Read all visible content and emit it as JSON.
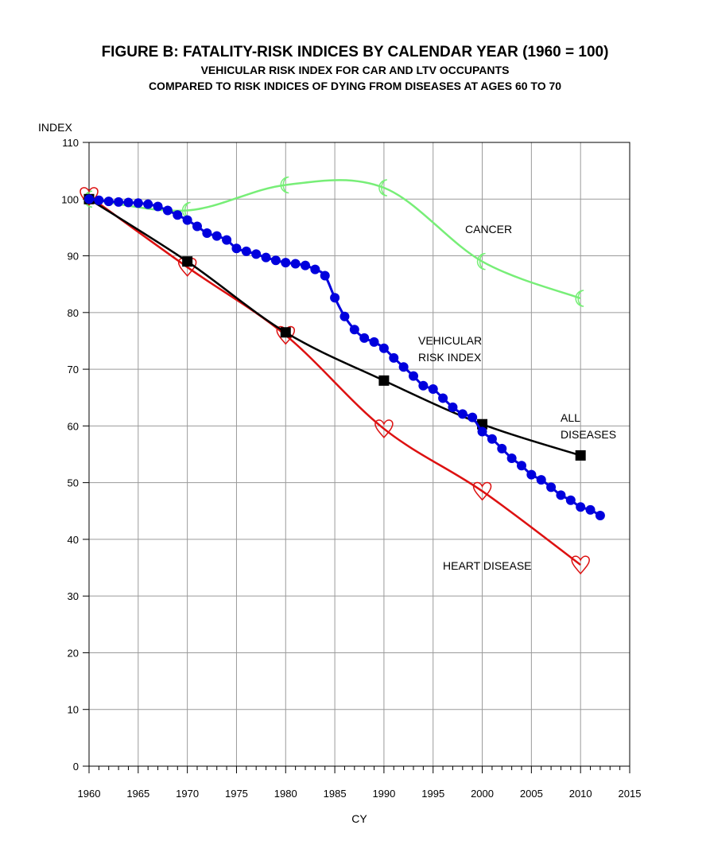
{
  "chart_data": {
    "type": "line",
    "title": "FIGURE B: FATALITY-RISK INDICES BY CALENDAR YEAR (1960 = 100)",
    "subtitle": [
      "VEHICULAR RISK INDEX FOR CAR AND LTV OCCUPANTS",
      "COMPARED TO RISK INDICES OF DYING FROM DISEASES AT AGES 60 TO 70"
    ],
    "ylabel": "INDEX",
    "xlabel": "CY",
    "xlim": [
      1960,
      2015
    ],
    "ylim": [
      0,
      110
    ],
    "xticks": [
      "1960",
      "1965",
      "1970",
      "1975",
      "1980",
      "1985",
      "1990",
      "1995",
      "2000",
      "2005",
      "2010",
      "2015"
    ],
    "yticks": [
      "0",
      "10",
      "20",
      "30",
      "40",
      "50",
      "60",
      "70",
      "80",
      "90",
      "100",
      "110"
    ],
    "grid": true,
    "series": [
      {
        "name": "VEHICULAR RISK INDEX",
        "color": "#0000dd",
        "marker": "circle",
        "x": [
          1960,
          1961,
          1962,
          1963,
          1964,
          1965,
          1966,
          1967,
          1968,
          1969,
          1970,
          1971,
          1972,
          1973,
          1974,
          1975,
          1976,
          1977,
          1978,
          1979,
          1980,
          1981,
          1982,
          1983,
          1984,
          1985,
          1986,
          1987,
          1988,
          1989,
          1990,
          1991,
          1992,
          1993,
          1994,
          1995,
          1996,
          1997,
          1998,
          1999,
          2000,
          2001,
          2002,
          2003,
          2004,
          2005,
          2006,
          2007,
          2008,
          2009,
          2010,
          2011,
          2012
        ],
        "y": [
          100,
          99.8,
          99.6,
          99.5,
          99.4,
          99.3,
          99.1,
          98.7,
          98.0,
          97.2,
          96.3,
          95.2,
          94.0,
          93.5,
          92.8,
          91.3,
          90.8,
          90.3,
          89.7,
          89.2,
          88.8,
          88.6,
          88.3,
          87.6,
          86.5,
          82.6,
          79.3,
          77.0,
          75.5,
          74.8,
          73.7,
          72.0,
          70.4,
          68.8,
          67.1,
          66.5,
          64.9,
          63.3,
          62.1,
          61.5,
          59.0,
          57.7,
          56.0,
          54.3,
          53.0,
          51.4,
          50.5,
          49.2,
          47.8,
          46.9,
          45.7,
          45.2,
          44.2
        ]
      },
      {
        "name": "ALL DISEASES",
        "color": "#000000",
        "marker": "square",
        "x": [
          1960,
          1970,
          1980,
          1990,
          2000,
          2010
        ],
        "y": [
          100,
          89,
          76.5,
          68,
          60.3,
          54.8
        ]
      },
      {
        "name": "HEART DISEASE",
        "color": "#dd1111",
        "marker": "heart",
        "x": [
          1960,
          1970,
          1980,
          1990,
          2000,
          2010
        ],
        "y": [
          100.5,
          88,
          76,
          59.5,
          48.5,
          35.5
        ]
      },
      {
        "name": "CANCER",
        "color": "#77ee77",
        "marker": "crescent",
        "x": [
          1960,
          1970,
          1980,
          1990,
          2000,
          2010
        ],
        "y": [
          100,
          98,
          102.5,
          102,
          89,
          82.5
        ]
      }
    ],
    "annotations": {
      "cancer": "CANCER",
      "vehicular": [
        "VEHICULAR",
        "RISK INDEX"
      ],
      "all_diseases": [
        "ALL",
        "DISEASES"
      ],
      "heart": "HEART DISEASE"
    }
  }
}
